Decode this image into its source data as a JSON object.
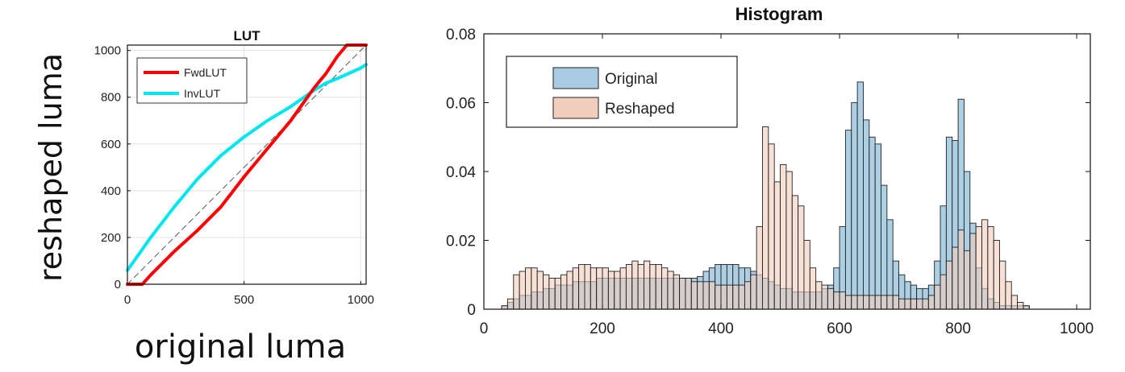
{
  "chart_data": [
    {
      "type": "line",
      "title": "LUT",
      "xlabel": "original luma",
      "ylabel": "reshaped luma",
      "xlim": [
        0,
        1023
      ],
      "ylim": [
        0,
        1023
      ],
      "xticks": [
        0,
        500,
        1000
      ],
      "yticks": [
        0,
        200,
        400,
        600,
        800,
        1000
      ],
      "grid": true,
      "legend_position": "top-left",
      "series": [
        {
          "name": "FwdLUT",
          "color": "#ff0000",
          "x": [
            0,
            64,
            100,
            200,
            300,
            400,
            500,
            600,
            700,
            800,
            850,
            900,
            940,
            1023
          ],
          "y": [
            0,
            0,
            40,
            140,
            230,
            330,
            460,
            580,
            700,
            840,
            900,
            975,
            1023,
            1023
          ]
        },
        {
          "name": "InvLUT",
          "color": "#00e5ee",
          "x": [
            0,
            50,
            100,
            200,
            300,
            400,
            500,
            600,
            700,
            800,
            850,
            900,
            1000,
            1023
          ],
          "y": [
            60,
            130,
            200,
            330,
            450,
            550,
            630,
            700,
            760,
            830,
            860,
            880,
            925,
            940
          ]
        },
        {
          "name": "",
          "color": "#555555",
          "dashed": true,
          "x": [
            0,
            1023
          ],
          "y": [
            0,
            1023
          ]
        }
      ]
    },
    {
      "type": "bar",
      "title": "Histogram",
      "xlabel": "",
      "ylabel": "",
      "xlim": [
        0,
        1023
      ],
      "ylim": [
        0,
        0.08
      ],
      "xticks": [
        0,
        200,
        400,
        600,
        800,
        1000
      ],
      "yticks": [
        0,
        0.02,
        0.04,
        0.06,
        0.08
      ],
      "ytick_labels": [
        "0",
        "0.02",
        "0.04",
        "0.06",
        "0.08"
      ],
      "legend_position": "top-left",
      "bin_width": 10,
      "series": [
        {
          "name": "Original",
          "color": "#a9cce3",
          "x": [
            30,
            40,
            50,
            60,
            70,
            80,
            90,
            100,
            110,
            120,
            130,
            140,
            150,
            160,
            170,
            180,
            190,
            200,
            210,
            220,
            230,
            240,
            250,
            260,
            270,
            280,
            290,
            300,
            310,
            320,
            330,
            340,
            350,
            360,
            370,
            380,
            390,
            400,
            410,
            420,
            430,
            440,
            450,
            460,
            470,
            480,
            490,
            500,
            510,
            520,
            530,
            540,
            550,
            560,
            570,
            580,
            590,
            600,
            610,
            620,
            630,
            640,
            650,
            660,
            670,
            680,
            690,
            700,
            710,
            720,
            730,
            740,
            750,
            760,
            770,
            780,
            790,
            800,
            810,
            820,
            830,
            840,
            850,
            860,
            870,
            880,
            890,
            900,
            910
          ],
          "values": [
            0.001,
            0.002,
            0.003,
            0.004,
            0.004,
            0.005,
            0.005,
            0.006,
            0.006,
            0.007,
            0.007,
            0.007,
            0.008,
            0.008,
            0.008,
            0.008,
            0.009,
            0.009,
            0.009,
            0.009,
            0.009,
            0.009,
            0.009,
            0.009,
            0.009,
            0.009,
            0.009,
            0.009,
            0.009,
            0.009,
            0.009,
            0.009,
            0.009,
            0.0095,
            0.011,
            0.012,
            0.013,
            0.013,
            0.013,
            0.013,
            0.012,
            0.012,
            0.011,
            0.01,
            0.009,
            0.008,
            0.007,
            0.006,
            0.006,
            0.005,
            0.005,
            0.005,
            0.005,
            0.005,
            0.006,
            0.007,
            0.012,
            0.024,
            0.052,
            0.06,
            0.066,
            0.055,
            0.05,
            0.048,
            0.036,
            0.026,
            0.014,
            0.01,
            0.008,
            0.007,
            0.006,
            0.006,
            0.007,
            0.014,
            0.03,
            0.05,
            0.049,
            0.061,
            0.04,
            0.025,
            0.012,
            0.006,
            0.003,
            0.002,
            0.001,
            0.001,
            0.001,
            0.001,
            0.001
          ]
        },
        {
          "name": "Reshaped",
          "color": "#f2cdbd",
          "x": [
            30,
            40,
            50,
            60,
            70,
            80,
            90,
            100,
            110,
            120,
            130,
            140,
            150,
            160,
            170,
            180,
            190,
            200,
            210,
            220,
            230,
            240,
            250,
            260,
            270,
            280,
            290,
            300,
            310,
            320,
            330,
            340,
            350,
            360,
            370,
            380,
            390,
            400,
            410,
            420,
            430,
            440,
            450,
            460,
            470,
            480,
            490,
            500,
            510,
            520,
            530,
            540,
            550,
            560,
            570,
            580,
            590,
            600,
            610,
            620,
            630,
            640,
            650,
            660,
            670,
            680,
            690,
            700,
            710,
            720,
            730,
            740,
            750,
            760,
            770,
            780,
            790,
            800,
            810,
            820,
            830,
            840,
            850,
            860,
            870,
            880,
            890,
            900,
            910
          ],
          "values": [
            0.001,
            0.003,
            0.01,
            0.011,
            0.012,
            0.012,
            0.011,
            0.01,
            0.009,
            0.009,
            0.01,
            0.011,
            0.012,
            0.013,
            0.013,
            0.012,
            0.012,
            0.012,
            0.011,
            0.011,
            0.012,
            0.013,
            0.014,
            0.013,
            0.014,
            0.013,
            0.013,
            0.012,
            0.011,
            0.01,
            0.009,
            0.009,
            0.008,
            0.008,
            0.008,
            0.008,
            0.007,
            0.007,
            0.007,
            0.007,
            0.007,
            0.008,
            0.01,
            0.024,
            0.053,
            0.048,
            0.037,
            0.042,
            0.04,
            0.033,
            0.03,
            0.02,
            0.012,
            0.008,
            0.007,
            0.006,
            0.005,
            0.005,
            0.004,
            0.004,
            0.004,
            0.004,
            0.004,
            0.004,
            0.004,
            0.004,
            0.004,
            0.003,
            0.003,
            0.003,
            0.003,
            0.003,
            0.004,
            0.007,
            0.01,
            0.014,
            0.018,
            0.023,
            0.017,
            0.022,
            0.024,
            0.026,
            0.024,
            0.02,
            0.014,
            0.008,
            0.004,
            0.002,
            0.001
          ]
        }
      ]
    }
  ]
}
